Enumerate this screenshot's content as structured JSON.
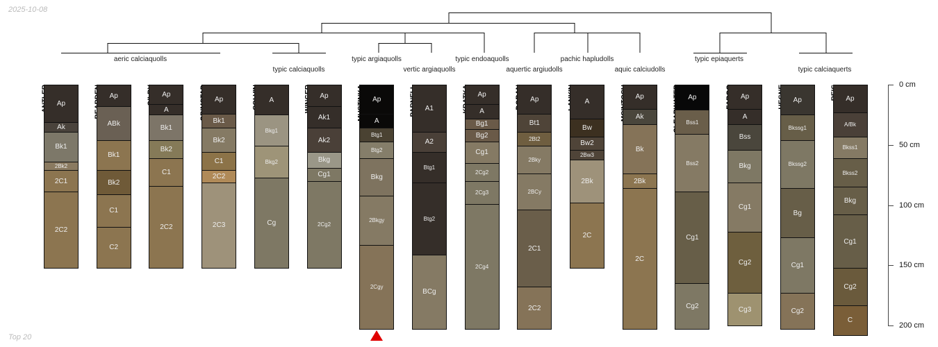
{
  "date_label": "2025-10-08",
  "footer_label": "Top 20",
  "taxa": [
    {
      "label": "aeric calciaquolls"
    },
    {
      "label": "typic calciaquolls"
    },
    {
      "label": "typic argiaquolls"
    },
    {
      "label": "vertic argiaquolls"
    },
    {
      "label": "typic endoaquolls"
    },
    {
      "label": "aquertic argiudolls"
    },
    {
      "label": "pachic hapludolls"
    },
    {
      "label": "aquic calciudolls"
    },
    {
      "label": "typic epiaquerts"
    },
    {
      "label": "typic calciaquerts"
    }
  ],
  "depth_axis": {
    "ticks": [
      {
        "value": 0,
        "label": "0 cm"
      },
      {
        "value": 50,
        "label": "50 cm"
      },
      {
        "value": 100,
        "label": "100 cm"
      },
      {
        "value": 150,
        "label": "150 cm"
      },
      {
        "value": 200,
        "label": "200 cm"
      }
    ]
  },
  "highlight_profile": "MUSTINKA",
  "highlight_color": "#e00000",
  "profiles": [
    {
      "name": "ANTLER",
      "horizons": [
        [
          "Ap",
          0,
          31,
          "#352e29"
        ],
        [
          "Ak",
          31,
          39,
          "#4a433c"
        ],
        [
          "Bk1",
          39,
          64,
          "#7d7869"
        ],
        [
          "2Bk2",
          64,
          71,
          "#8a7a60"
        ],
        [
          "2C1",
          71,
          89,
          "#8c7550"
        ],
        [
          "2C2",
          89,
          152,
          "#8c7550"
        ]
      ]
    },
    {
      "name": "BEARDEN",
      "horizons": [
        [
          "Ap",
          0,
          18,
          "#352e29"
        ],
        [
          "ABk",
          18,
          46,
          "#6a6054"
        ],
        [
          "Bk1",
          46,
          71,
          "#8c7550"
        ],
        [
          "Bk2",
          71,
          91,
          "#6f5a38"
        ],
        [
          "C1",
          91,
          118,
          "#8c7550"
        ],
        [
          "C2",
          118,
          152,
          "#8c7550"
        ]
      ]
    },
    {
      "name": "GILBY",
      "horizons": [
        [
          "Ap",
          0,
          16,
          "#352e29"
        ],
        [
          "A",
          16,
          25,
          "#352e29"
        ],
        [
          "Bk1",
          25,
          46,
          "#7d7568"
        ],
        [
          "Bk2",
          46,
          61,
          "#857a58"
        ],
        [
          "C1",
          61,
          84,
          "#8c7550"
        ],
        [
          "2C2",
          84,
          152,
          "#8c7550"
        ]
      ]
    },
    {
      "name": "GRIMSTAD",
      "horizons": [
        [
          "Ap",
          0,
          24,
          "#352e29"
        ],
        [
          "Bk1",
          24,
          36,
          "#6a5a48"
        ],
        [
          "Bk2",
          36,
          56,
          "#857a64"
        ],
        [
          "C1",
          56,
          71,
          "#8c7348"
        ],
        [
          "2C2",
          71,
          81,
          "#b08a58"
        ],
        [
          "2C3",
          81,
          152,
          "#9e927a"
        ]
      ]
    },
    {
      "name": "COLVIN",
      "horizons": [
        [
          "A",
          0,
          25,
          "#352e29"
        ],
        [
          "Bkg1",
          25,
          51,
          "#9b9482"
        ],
        [
          "Bkg2",
          51,
          77,
          "#9e9478"
        ],
        [
          "Cg",
          77,
          152,
          "#7e7864"
        ]
      ]
    },
    {
      "name": "WINGER",
      "horizons": [
        [
          "Ap",
          0,
          18,
          "#352e29"
        ],
        [
          "Ak1",
          18,
          36,
          "#352e29"
        ],
        [
          "Ak2",
          36,
          56,
          "#4a4038"
        ],
        [
          "Bkg",
          56,
          69,
          "#9a9788"
        ],
        [
          "Cg1",
          69,
          80,
          "#7e7864"
        ],
        [
          "2Cg2",
          80,
          152,
          "#7e7864"
        ]
      ]
    },
    {
      "name": "MUSTINKA",
      "horizons": [
        [
          "Ap",
          0,
          24,
          "#0a0908"
        ],
        [
          "A",
          24,
          36,
          "#0a0908"
        ],
        [
          "Btg1",
          36,
          47,
          "#4a4232"
        ],
        [
          "Btg2",
          47,
          61,
          "#857e6a"
        ],
        [
          "Bkg",
          61,
          92,
          "#7e735f"
        ],
        [
          "2Bkgy",
          92,
          133,
          "#857a64"
        ],
        [
          "2Cgy",
          133,
          203,
          "#857358"
        ]
      ]
    },
    {
      "name": "PARNELL",
      "horizons": [
        [
          "A1",
          0,
          39,
          "#352e29"
        ],
        [
          "A2",
          39,
          56,
          "#4a4038"
        ],
        [
          "Btg1",
          56,
          81,
          "#352e29"
        ],
        [
          "Btg2",
          81,
          141,
          "#352e29"
        ],
        [
          "BCg",
          141,
          203,
          "#857a64"
        ]
      ]
    },
    {
      "name": "KRATKA",
      "horizons": [
        [
          "Ap",
          0,
          16,
          "#352e29"
        ],
        [
          "A",
          16,
          28,
          "#352e29"
        ],
        [
          "Bg1",
          28,
          37,
          "#6a5a48"
        ],
        [
          "Bg2",
          37,
          47,
          "#6a5a48"
        ],
        [
          "Cg1",
          47,
          65,
          "#857a64"
        ],
        [
          "2Cg2",
          65,
          80,
          "#7e7864"
        ],
        [
          "2Cg3",
          80,
          99,
          "#7e7864"
        ],
        [
          "2Cg4",
          99,
          203,
          "#7e7864"
        ]
      ]
    },
    {
      "name": "DORAN",
      "horizons": [
        [
          "Ap",
          0,
          24,
          "#352e29"
        ],
        [
          "Bt1",
          24,
          39,
          "#4f4438"
        ],
        [
          "2Bt2",
          39,
          51,
          "#6f5e40"
        ],
        [
          "2Bky",
          51,
          74,
          "#857a64"
        ],
        [
          "2BCy",
          74,
          104,
          "#857a64"
        ],
        [
          "2C1",
          104,
          168,
          "#6a5e4a"
        ],
        [
          "2C2",
          168,
          203,
          "#857358"
        ]
      ]
    },
    {
      "name": "LANKIN",
      "horizons": [
        [
          "A",
          0,
          28,
          "#352e29"
        ],
        [
          "Bw",
          28,
          43,
          "#3c3020"
        ],
        [
          "Bw2",
          43,
          54,
          "#4f4438"
        ],
        [
          "2Bw3",
          54,
          62,
          "#4f4438"
        ],
        [
          "2Bk",
          62,
          98,
          "#9e927a"
        ],
        [
          "2C",
          98,
          152,
          "#8c7550"
        ]
      ]
    },
    {
      "name": "MCINTOSH",
      "horizons": [
        [
          "Ap",
          0,
          20,
          "#352e29"
        ],
        [
          "Ak",
          20,
          33,
          "#4a463c"
        ],
        [
          "Bk",
          33,
          74,
          "#857358"
        ],
        [
          "2Bk",
          74,
          86,
          "#8c7550"
        ],
        [
          "2C",
          86,
          203,
          "#8c7550"
        ]
      ]
    },
    {
      "name": "CLEARWATER",
      "horizons": [
        [
          "Ap",
          0,
          21,
          "#080808"
        ],
        [
          "Bss1",
          21,
          41,
          "#6a5e4a"
        ],
        [
          "Bss2",
          41,
          89,
          "#857a64"
        ],
        [
          "Cg1",
          89,
          165,
          "#675e48"
        ],
        [
          "Cg2",
          165,
          203,
          "#7e7864"
        ]
      ]
    },
    {
      "name": "FARGO",
      "horizons": [
        [
          "Ap",
          0,
          20,
          "#352e29"
        ],
        [
          "A",
          20,
          33,
          "#352e29"
        ],
        [
          "Bss",
          33,
          54,
          "#4a463c"
        ],
        [
          "Bkg",
          54,
          81,
          "#7e7864"
        ],
        [
          "Cg1",
          81,
          122,
          "#857a64"
        ],
        [
          "Cg2",
          122,
          173,
          "#6e5f3e"
        ],
        [
          "Cg3",
          173,
          200,
          "#9e9270"
        ]
      ]
    },
    {
      "name": "HEGNE",
      "horizons": [
        [
          "Ap",
          0,
          25,
          "#3a3630"
        ],
        [
          "Bkssg1",
          25,
          46,
          "#675e48"
        ],
        [
          "Bkssg2",
          46,
          86,
          "#7e7864"
        ],
        [
          "Bg",
          86,
          127,
          "#675e48"
        ],
        [
          "Cg1",
          127,
          173,
          "#7e7864"
        ],
        [
          "Cg2",
          173,
          203,
          "#857358"
        ]
      ]
    },
    {
      "name": "REIS",
      "horizons": [
        [
          "Ap",
          0,
          23,
          "#352e29"
        ],
        [
          "A/Bk",
          23,
          43,
          "#4a4038"
        ],
        [
          "Bkss1",
          43,
          61,
          "#857a64"
        ],
        [
          "Bkss2",
          61,
          85,
          "#675e48"
        ],
        [
          "Bkg",
          85,
          108,
          "#675e48"
        ],
        [
          "Cg1",
          108,
          152,
          "#675e48"
        ],
        [
          "Cg2",
          152,
          183,
          "#6a5a3c"
        ],
        [
          "C",
          183,
          208,
          "#7a5e38"
        ]
      ]
    }
  ]
}
